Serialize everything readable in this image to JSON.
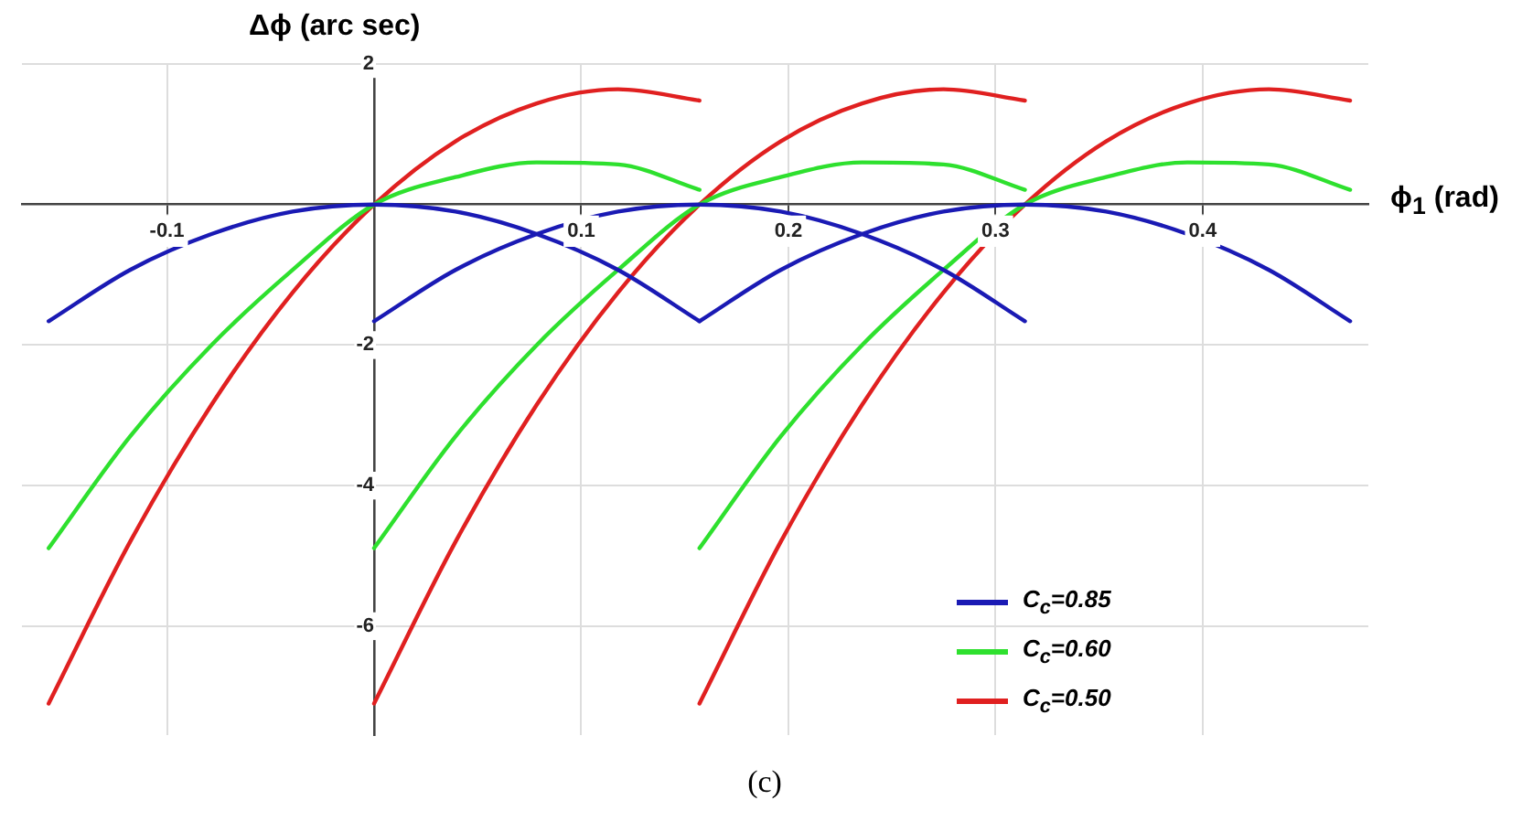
{
  "chart_data": {
    "type": "line",
    "xlabel": "ϕ$_{1}$ (rad)",
    "ylabel": "Δϕ (arc sec)",
    "annotations": [
      "(c)"
    ],
    "xlim": [
      -0.17,
      0.48
    ],
    "xticks": [
      -0.1,
      0.1,
      0.2,
      0.3,
      0.4
    ],
    "ylim": [
      -7.55,
      2
    ],
    "yticks": [
      2,
      -2,
      -4,
      -6
    ],
    "grid": true,
    "legend": "bottom right",
    "marker": "none",
    "line_style": "solid",
    "series": [
      {
        "name": "C$_{c}$=0.85",
        "color": "#1a1ab4",
        "x": [
          -0.1571,
          -0.1178,
          -0.0785,
          -0.0393,
          0,
          0.0393,
          0.0785,
          0.1178,
          0.1571
        ],
        "values": [
          -1.66,
          -0.93,
          -0.42,
          -0.1,
          0,
          -0.1,
          -0.42,
          -0.93,
          -1.66
        ]
      },
      {
        "color": "#1a1ab4",
        "x": [
          0,
          0.0393,
          0.0785,
          0.1178,
          0.1571,
          0.1963,
          0.2356,
          0.2749,
          0.3142
        ],
        "values": [
          -1.66,
          -0.93,
          -0.42,
          -0.1,
          0,
          -0.1,
          -0.42,
          -0.93,
          -1.66
        ]
      },
      {
        "color": "#1a1ab4",
        "x": [
          0.1571,
          0.1963,
          0.2356,
          0.2749,
          0.3142,
          0.3534,
          0.3927,
          0.432,
          0.4712
        ],
        "values": [
          -1.66,
          -0.93,
          -0.42,
          -0.1,
          0,
          -0.1,
          -0.42,
          -0.93,
          -1.66
        ]
      },
      {
        "name": "C$_{c}$=0.60",
        "color": "#2ee02e",
        "x": [
          -0.1571,
          -0.1178,
          -0.0785,
          -0.0393,
          0,
          0.0393,
          0.0785,
          0.1178,
          0.1571
        ],
        "values": [
          -4.89,
          -3.3,
          -2.0,
          -0.93,
          0,
          0.39,
          0.6,
          0.57,
          0.21
        ]
      },
      {
        "color": "#2ee02e",
        "x": [
          0,
          0.0393,
          0.0785,
          0.1178,
          0.1571,
          0.1963,
          0.2356,
          0.2749,
          0.3142
        ],
        "values": [
          -4.89,
          -3.3,
          -2.0,
          -0.93,
          0,
          0.39,
          0.6,
          0.57,
          0.21
        ]
      },
      {
        "color": "#2ee02e",
        "x": [
          0.1571,
          0.1963,
          0.2356,
          0.2749,
          0.3142,
          0.3534,
          0.3927,
          0.432,
          0.4712
        ],
        "values": [
          -4.89,
          -3.3,
          -2.0,
          -0.93,
          0,
          0.39,
          0.6,
          0.57,
          0.21
        ]
      },
      {
        "name": "C$_{c}$=0.50",
        "color": "#e02020",
        "x": [
          -0.1571,
          -0.1178,
          -0.0785,
          -0.0393,
          0,
          0.0393,
          0.0785,
          0.1178,
          0.1571
        ],
        "values": [
          -7.1,
          -4.8,
          -2.85,
          -1.25,
          0,
          0.9,
          1.44,
          1.64,
          1.48
        ]
      },
      {
        "color": "#e02020",
        "x": [
          0,
          0.0393,
          0.0785,
          0.1178,
          0.1571,
          0.1963,
          0.2356,
          0.2749,
          0.3142
        ],
        "values": [
          -7.1,
          -4.8,
          -2.85,
          -1.25,
          0,
          0.9,
          1.44,
          1.64,
          1.48
        ]
      },
      {
        "color": "#e02020",
        "x": [
          0.1571,
          0.1963,
          0.2356,
          0.2749,
          0.3142,
          0.3534,
          0.3927,
          0.432,
          0.4712
        ],
        "values": [
          -7.1,
          -4.8,
          -2.85,
          -1.25,
          0,
          0.9,
          1.44,
          1.64,
          1.48
        ]
      }
    ]
  }
}
